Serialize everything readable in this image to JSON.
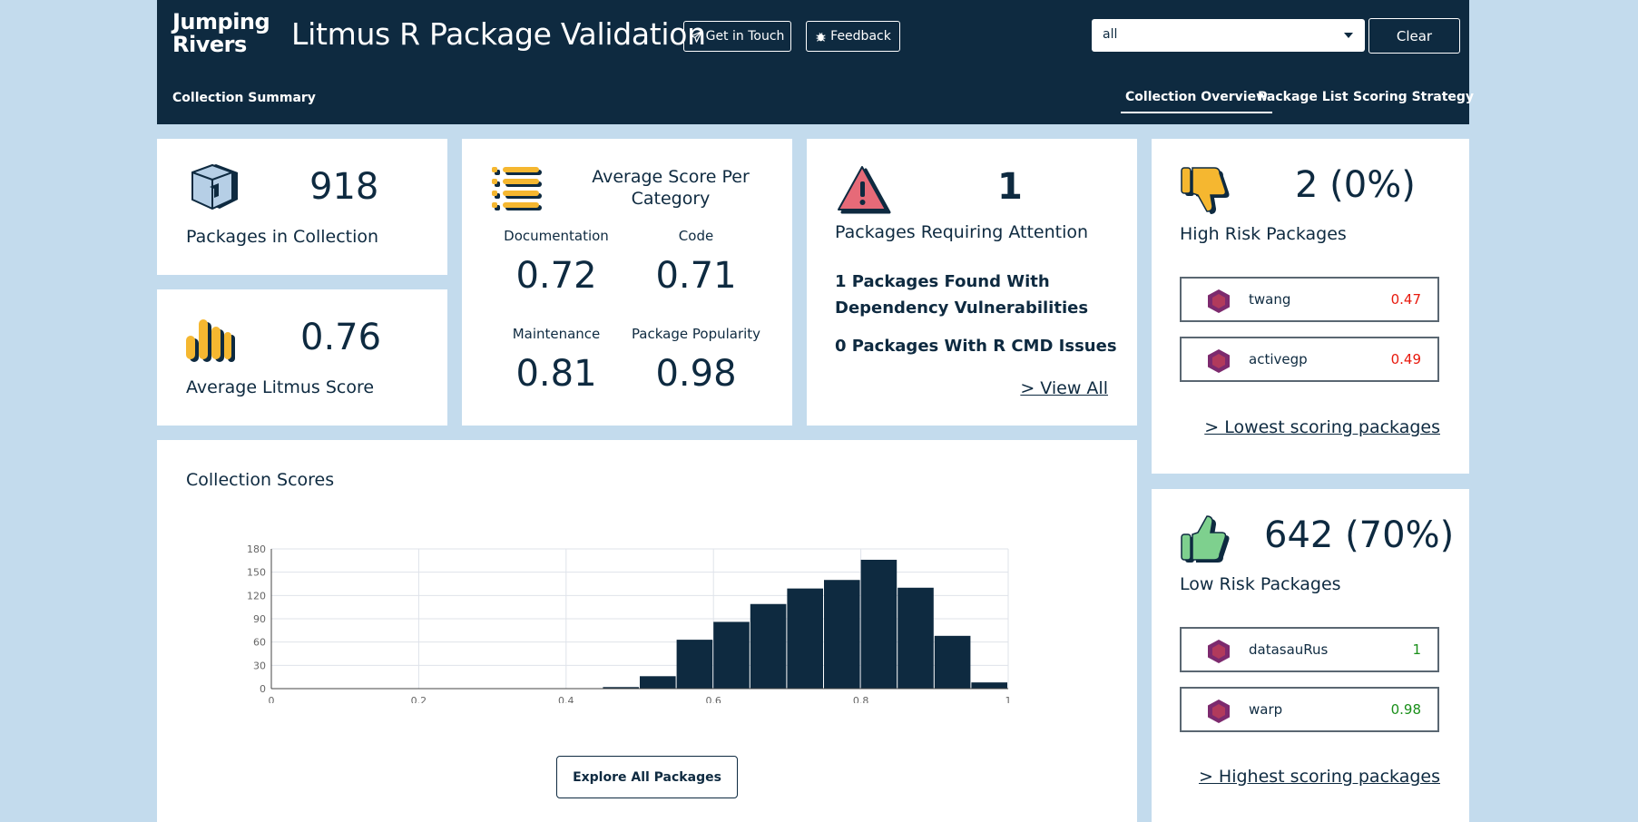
{
  "header": {
    "logo_line1": "Jumping",
    "logo_line2": "Rivers",
    "title": "Litmus R Package Validation",
    "get_in_touch": "Get in Touch",
    "feedback": "Feedback",
    "select_value": "all",
    "clear": "Clear",
    "section": "Collection Summary",
    "tabs": [
      "Collection Overview",
      "Package List",
      "Scoring Strategy"
    ]
  },
  "summary": {
    "packages_count": "918",
    "packages_label": "Packages in Collection",
    "avg_score": "0.76",
    "avg_score_label": "Average Litmus Score"
  },
  "category": {
    "title": "Average Score Per Category",
    "items": [
      {
        "label": "Documentation",
        "value": "0.72"
      },
      {
        "label": "Code",
        "value": "0.71"
      },
      {
        "label": "Maintenance",
        "value": "0.81"
      },
      {
        "label": "Package Popularity",
        "value": "0.98"
      }
    ]
  },
  "attention": {
    "count": "1",
    "label": "Packages Requiring Attention",
    "dependency_text": "1 Packages Found With Dependency Vulnerabilities",
    "rcmd_text": "0 Packages With R CMD Issues",
    "view_all": "> View All"
  },
  "high_risk": {
    "count": "2 (0%)",
    "label": "High Risk Packages",
    "packages": [
      {
        "name": "twang",
        "score": "0.47"
      },
      {
        "name": "activegp",
        "score": "0.49"
      }
    ],
    "link": "> Lowest scoring packages"
  },
  "low_risk": {
    "count": "642 (70%)",
    "label": "Low Risk Packages",
    "packages": [
      {
        "name": "datasauRus",
        "score": "1"
      },
      {
        "name": "warp",
        "score": "0.98"
      }
    ],
    "link": "> Highest scoring packages"
  },
  "scores_card": {
    "title": "Collection Scores",
    "explore_button": "Explore All Packages"
  },
  "colors": {
    "navy": "#0e2a40",
    "background": "#c3dbed",
    "accent_yellow": "#f5b730",
    "warning_red": "#e66a78",
    "thumb_green": "#7ed08e",
    "score_low": "#e8190d",
    "score_high": "#1a8f1a"
  },
  "chart_data": {
    "type": "bar",
    "title": "",
    "xlabel": "",
    "ylabel": "",
    "xlim": [
      0,
      1
    ],
    "ylim": [
      0,
      180
    ],
    "x_ticks": [
      "0",
      "0.2",
      "0.4",
      "0.6",
      "0.8",
      "1"
    ],
    "y_ticks": [
      "0",
      "30",
      "60",
      "90",
      "120",
      "150",
      "180"
    ],
    "bin_width": 0.05,
    "bins": [
      {
        "x0": 0.45,
        "x1": 0.5,
        "count": 2
      },
      {
        "x0": 0.5,
        "x1": 0.55,
        "count": 16
      },
      {
        "x0": 0.55,
        "x1": 0.6,
        "count": 63
      },
      {
        "x0": 0.6,
        "x1": 0.65,
        "count": 86
      },
      {
        "x0": 0.65,
        "x1": 0.7,
        "count": 109
      },
      {
        "x0": 0.7,
        "x1": 0.75,
        "count": 129
      },
      {
        "x0": 0.75,
        "x1": 0.8,
        "count": 140
      },
      {
        "x0": 0.8,
        "x1": 0.85,
        "count": 166
      },
      {
        "x0": 0.85,
        "x1": 0.9,
        "count": 130
      },
      {
        "x0": 0.9,
        "x1": 0.95,
        "count": 68
      },
      {
        "x0": 0.95,
        "x1": 1.0,
        "count": 8
      }
    ],
    "grid": true,
    "bar_color": "#0e2a40"
  }
}
